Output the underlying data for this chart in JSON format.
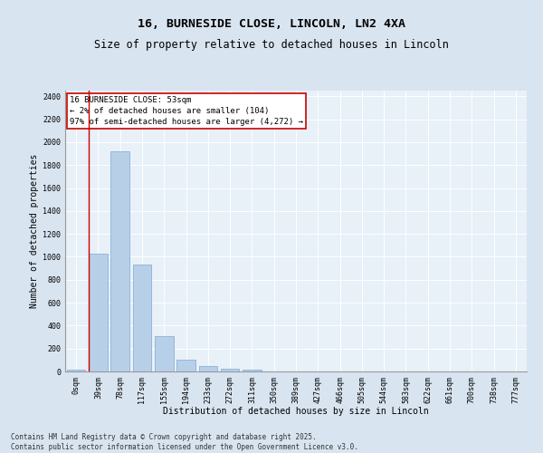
{
  "title_line1": "16, BURNESIDE CLOSE, LINCOLN, LN2 4XA",
  "title_line2": "Size of property relative to detached houses in Lincoln",
  "xlabel": "Distribution of detached houses by size in Lincoln",
  "ylabel": "Number of detached properties",
  "bar_labels": [
    "0sqm",
    "39sqm",
    "78sqm",
    "117sqm",
    "155sqm",
    "194sqm",
    "233sqm",
    "272sqm",
    "311sqm",
    "350sqm",
    "389sqm",
    "427sqm",
    "466sqm",
    "505sqm",
    "544sqm",
    "583sqm",
    "622sqm",
    "661sqm",
    "700sqm",
    "738sqm",
    "777sqm"
  ],
  "bar_values": [
    15,
    1030,
    1920,
    930,
    310,
    100,
    50,
    25,
    15,
    0,
    0,
    0,
    0,
    0,
    0,
    0,
    0,
    0,
    0,
    0,
    0
  ],
  "bar_color": "#b8cfe8",
  "bar_edgecolor": "#6699cc",
  "vline_x_idx": 1,
  "vline_color": "#cc0000",
  "ylim": [
    0,
    2450
  ],
  "yticks": [
    0,
    200,
    400,
    600,
    800,
    1000,
    1200,
    1400,
    1600,
    1800,
    2000,
    2200,
    2400
  ],
  "annotation_text": "16 BURNESIDE CLOSE: 53sqm\n← 2% of detached houses are smaller (104)\n97% of semi-detached houses are larger (4,272) →",
  "annotation_box_edgecolor": "#cc0000",
  "annotation_box_facecolor": "#ffffff",
  "footer_line1": "Contains HM Land Registry data © Crown copyright and database right 2025.",
  "footer_line2": "Contains public sector information licensed under the Open Government Licence v3.0.",
  "bg_color": "#d8e4f0",
  "plot_bg_color": "#e8f0f8",
  "grid_color": "#ffffff",
  "title_fontsize": 9.5,
  "subtitle_fontsize": 8.5,
  "axis_label_fontsize": 7,
  "tick_fontsize": 6,
  "annotation_fontsize": 6.5,
  "footer_fontsize": 5.5
}
